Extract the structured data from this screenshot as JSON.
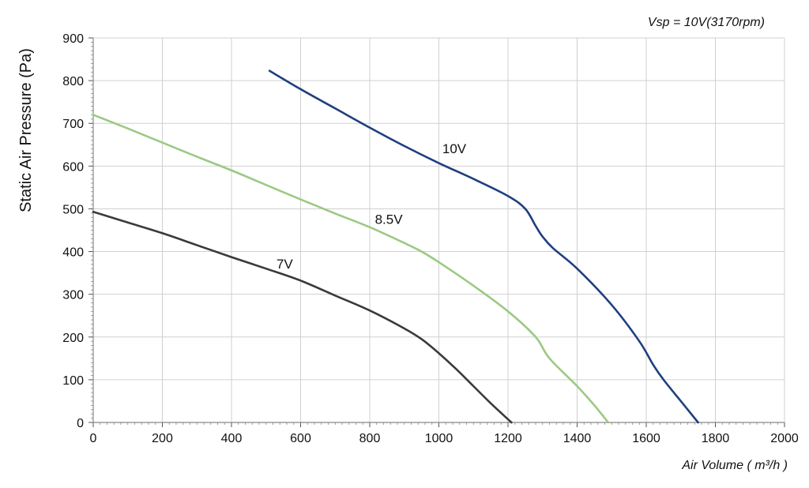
{
  "chart_data": {
    "type": "line",
    "title": "",
    "annotation": "Vsp = 10V(3170rpm)",
    "xlabel": "Air Volume ( m³/h )",
    "ylabel": "Static Air Pressure  (Pa)",
    "xlim": [
      0,
      2000
    ],
    "ylim": [
      0,
      900
    ],
    "x_ticks": [
      "0",
      "200",
      "400",
      "600",
      "800",
      "1000",
      "1200",
      "1400",
      "1600",
      "1800",
      "2000"
    ],
    "y_ticks": [
      "0",
      "100",
      "200",
      "300",
      "400",
      "500",
      "600",
      "700",
      "800",
      "900"
    ],
    "grid": true,
    "legend": "inline labels",
    "series": [
      {
        "name": "10V",
        "label": "10V",
        "color": "#1f3f7f",
        "label_at": [
          1010,
          630
        ],
        "x": [
          510,
          600,
          700,
          800,
          900,
          1000,
          1100,
          1200,
          1250,
          1280,
          1300,
          1330,
          1400,
          1500,
          1580,
          1620,
          1650,
          1700,
          1750
        ],
        "y": [
          823,
          780,
          735,
          690,
          647,
          607,
          570,
          530,
          500,
          460,
          435,
          408,
          360,
          275,
          190,
          135,
          100,
          50,
          0
        ]
      },
      {
        "name": "8.5V",
        "label": "8.5V",
        "color": "#9cc984",
        "label_at": [
          815,
          465
        ],
        "x": [
          0,
          100,
          200,
          300,
          400,
          500,
          600,
          700,
          800,
          900,
          950,
          1000,
          1100,
          1200,
          1280,
          1320,
          1400,
          1450,
          1490
        ],
        "y": [
          720,
          688,
          655,
          622,
          590,
          556,
          522,
          489,
          457,
          420,
          400,
          375,
          320,
          260,
          200,
          150,
          85,
          40,
          0
        ]
      },
      {
        "name": "7V",
        "label": "7V",
        "color": "#3a3a3a",
        "label_at": [
          530,
          360
        ],
        "x": [
          0,
          100,
          200,
          300,
          400,
          500,
          600,
          700,
          800,
          900,
          950,
          1000,
          1050,
          1100,
          1150,
          1210
        ],
        "y": [
          493,
          468,
          443,
          415,
          387,
          360,
          332,
          297,
          262,
          220,
          195,
          162,
          125,
          85,
          45,
          0
        ]
      }
    ]
  }
}
